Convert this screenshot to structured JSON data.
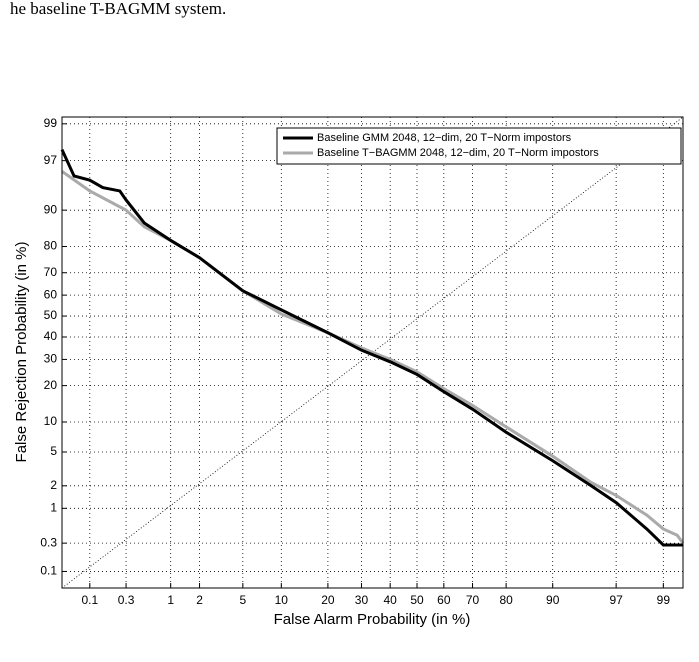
{
  "caption": "he baseline T-BAGMM system.",
  "chart_data": {
    "type": "line",
    "scale": "probit",
    "xlabel": "False Alarm Probability (in %)",
    "ylabel": "False Rejection Probability (in %)",
    "xlim": [
      0.04,
      99.4
    ],
    "ylim": [
      0.05,
      99.2
    ],
    "xticks": [
      0.1,
      0.3,
      1,
      2,
      5,
      10,
      20,
      30,
      40,
      50,
      60,
      70,
      80,
      90,
      97,
      99
    ],
    "yticks": [
      0.1,
      0.3,
      1,
      2,
      5,
      10,
      20,
      30,
      40,
      50,
      60,
      70,
      80,
      90,
      97,
      99
    ],
    "grid": true,
    "legend": "upper right",
    "series": [
      {
        "name": "Baseline GMM 2048, 12−dim, 20 T−Norm impostors",
        "color": "#000000",
        "x": [
          0.04,
          0.06,
          0.1,
          0.15,
          0.25,
          0.3,
          0.5,
          1,
          2,
          5,
          10,
          20,
          30,
          40,
          50,
          60,
          70,
          80,
          90,
          95,
          97,
          98.5,
          99,
          99.4
        ],
        "values": [
          97.8,
          95.5,
          95,
          94,
          93.5,
          92,
          87,
          82,
          76,
          62,
          53,
          42,
          34,
          29,
          24,
          18,
          13,
          8,
          4,
          2,
          1.2,
          0.5,
          0.28,
          0.28
        ]
      },
      {
        "name": "Baseline T−BAGMM 2048, 12−dim, 20 T−Norm impostors",
        "color": "#aaaaaa",
        "x": [
          0.04,
          0.1,
          0.3,
          0.5,
          1,
          2,
          5,
          10,
          20,
          30,
          40,
          50,
          60,
          70,
          80,
          90,
          95,
          97,
          98.5,
          99,
          99.3,
          99.4
        ],
        "values": [
          96,
          93.5,
          90,
          86,
          82,
          76,
          62,
          51,
          42,
          35,
          30,
          25,
          19,
          14,
          9,
          4.5,
          2.2,
          1.5,
          0.8,
          0.5,
          0.4,
          0.3
        ]
      }
    ]
  }
}
